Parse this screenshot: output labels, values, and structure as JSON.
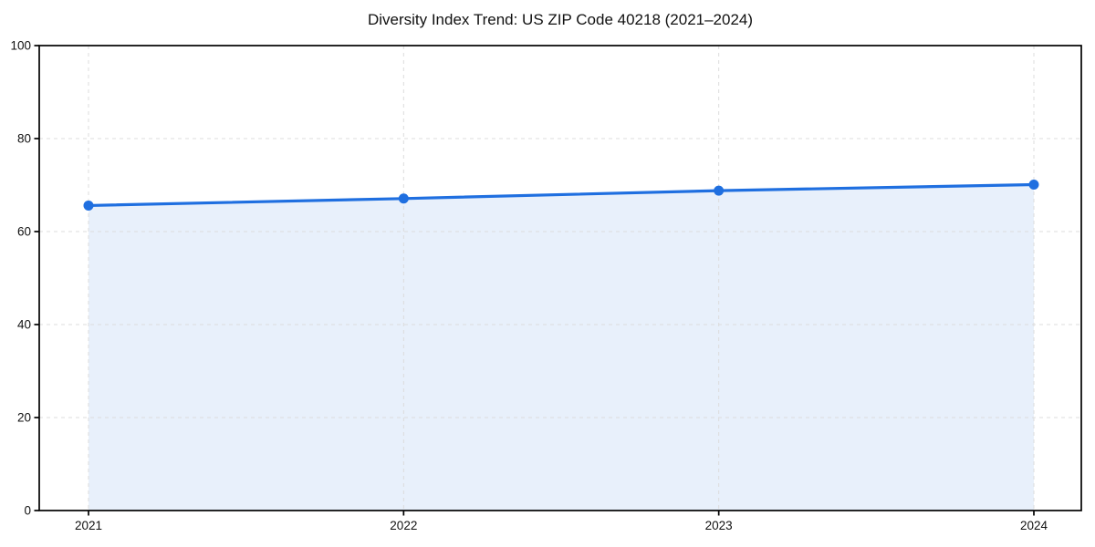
{
  "chart_data": {
    "type": "area",
    "title": "Diversity Index Trend: US ZIP Code 40218 (2021–2024)",
    "categories": [
      "2021",
      "2022",
      "2023",
      "2024"
    ],
    "values": [
      65.6,
      67.1,
      68.8,
      70.1
    ],
    "series_name": "Diversity Index",
    "xlabel": "",
    "ylabel": "",
    "ylim": [
      0,
      100
    ],
    "yticks": [
      0,
      20,
      40,
      60,
      80,
      100
    ],
    "grid": "dashed",
    "legend_position": "none",
    "colors": {
      "line": "#1f6fe0",
      "marker": "#1f6fe0",
      "fill": "#e8f0fb",
      "grid": "#dcdcdc",
      "axis": "#000000",
      "text": "#111111",
      "background": "#ffffff"
    }
  }
}
